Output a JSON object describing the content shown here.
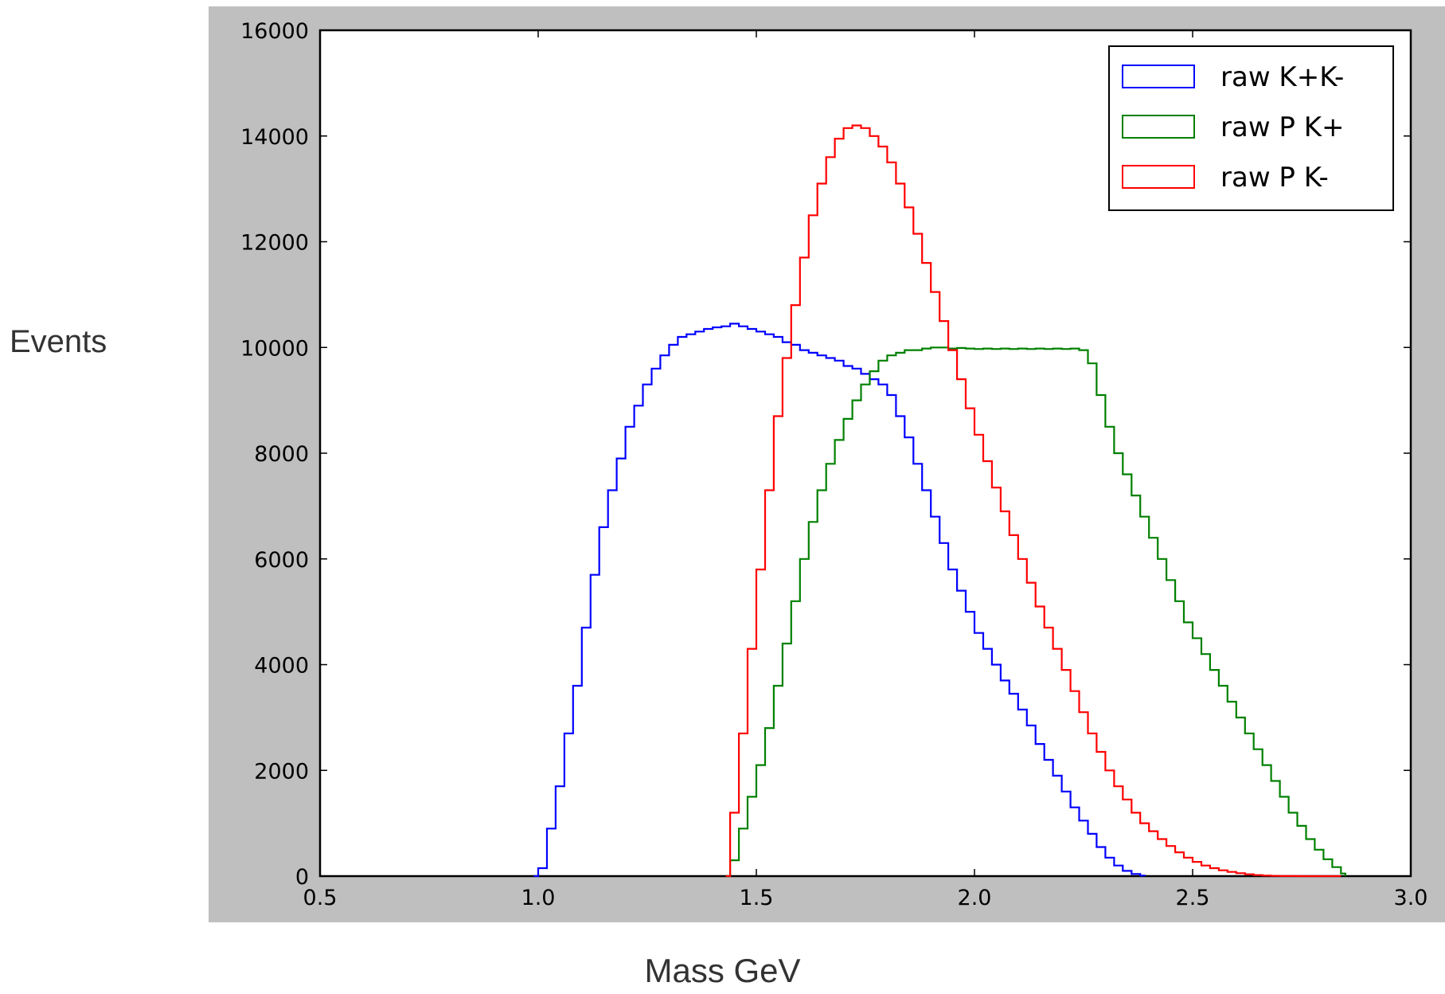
{
  "chart_data": {
    "type": "line",
    "title": "",
    "xlabel": "Mass GeV",
    "ylabel": "Events",
    "xlim": [
      0.5,
      3.0
    ],
    "ylim": [
      0,
      16000
    ],
    "xticks": [
      "0.5",
      "1.0",
      "1.5",
      "2.0",
      "2.5",
      "3.0"
    ],
    "yticks": [
      "0",
      "2000",
      "4000",
      "6000",
      "8000",
      "10000",
      "12000",
      "14000",
      "16000"
    ],
    "grid": false,
    "legend_position": "top-right",
    "step_style": true,
    "series": [
      {
        "name": "raw K+K-",
        "color": "#0000ff",
        "x": [
          0.99,
          1.0,
          1.02,
          1.04,
          1.06,
          1.08,
          1.1,
          1.12,
          1.14,
          1.16,
          1.18,
          1.2,
          1.22,
          1.24,
          1.26,
          1.28,
          1.3,
          1.32,
          1.34,
          1.36,
          1.38,
          1.4,
          1.42,
          1.44,
          1.46,
          1.48,
          1.5,
          1.52,
          1.54,
          1.56,
          1.58,
          1.6,
          1.62,
          1.64,
          1.66,
          1.68,
          1.7,
          1.72,
          1.74,
          1.76,
          1.78,
          1.8,
          1.82,
          1.84,
          1.86,
          1.88,
          1.9,
          1.92,
          1.94,
          1.96,
          1.98,
          2.0,
          2.02,
          2.04,
          2.06,
          2.08,
          2.1,
          2.12,
          2.14,
          2.16,
          2.18,
          2.2,
          2.22,
          2.24,
          2.26,
          2.28,
          2.3,
          2.32,
          2.34,
          2.36,
          2.38,
          2.39
        ],
        "y": [
          0,
          150,
          900,
          1700,
          2700,
          3600,
          4700,
          5700,
          6600,
          7300,
          7900,
          8500,
          8900,
          9300,
          9600,
          9850,
          10050,
          10200,
          10250,
          10300,
          10350,
          10380,
          10400,
          10450,
          10400,
          10350,
          10300,
          10250,
          10200,
          10100,
          10050,
          9950,
          9900,
          9850,
          9800,
          9750,
          9650,
          9600,
          9500,
          9400,
          9300,
          9100,
          8700,
          8300,
          7800,
          7300,
          6800,
          6300,
          5800,
          5400,
          5000,
          4600,
          4300,
          4000,
          3700,
          3450,
          3150,
          2850,
          2500,
          2200,
          1900,
          1600,
          1300,
          1050,
          800,
          550,
          350,
          200,
          100,
          40,
          10,
          0
        ]
      },
      {
        "name": "raw P K+",
        "color": "#008000",
        "x": [
          1.43,
          1.44,
          1.46,
          1.48,
          1.5,
          1.52,
          1.54,
          1.56,
          1.58,
          1.6,
          1.62,
          1.64,
          1.66,
          1.68,
          1.7,
          1.72,
          1.74,
          1.76,
          1.78,
          1.8,
          1.82,
          1.84,
          1.86,
          1.88,
          1.9,
          1.92,
          1.94,
          1.96,
          1.98,
          2.0,
          2.02,
          2.04,
          2.06,
          2.08,
          2.1,
          2.12,
          2.14,
          2.16,
          2.18,
          2.2,
          2.22,
          2.24,
          2.26,
          2.28,
          2.3,
          2.32,
          2.34,
          2.36,
          2.38,
          2.4,
          2.42,
          2.44,
          2.46,
          2.48,
          2.5,
          2.52,
          2.54,
          2.56,
          2.58,
          2.6,
          2.62,
          2.64,
          2.66,
          2.68,
          2.7,
          2.72,
          2.74,
          2.76,
          2.78,
          2.8,
          2.82,
          2.84,
          2.85
        ],
        "y": [
          0,
          300,
          900,
          1500,
          2100,
          2800,
          3600,
          4400,
          5200,
          6000,
          6700,
          7300,
          7800,
          8250,
          8650,
          9000,
          9300,
          9550,
          9750,
          9850,
          9900,
          9950,
          9950,
          9980,
          10000,
          10000,
          9980,
          9990,
          9980,
          9970,
          9980,
          9970,
          9980,
          9970,
          9980,
          9970,
          9980,
          9970,
          9980,
          9970,
          9980,
          9950,
          9700,
          9100,
          8500,
          8000,
          7600,
          7200,
          6800,
          6400,
          6000,
          5600,
          5200,
          4800,
          4500,
          4200,
          3900,
          3600,
          3300,
          3000,
          2700,
          2400,
          2100,
          1800,
          1500,
          1200,
          950,
          700,
          500,
          320,
          170,
          50,
          0
        ]
      },
      {
        "name": "raw P K-",
        "color": "#ff0000",
        "x": [
          1.43,
          1.44,
          1.46,
          1.48,
          1.5,
          1.52,
          1.54,
          1.56,
          1.58,
          1.6,
          1.62,
          1.64,
          1.66,
          1.68,
          1.7,
          1.72,
          1.74,
          1.76,
          1.78,
          1.8,
          1.82,
          1.84,
          1.86,
          1.88,
          1.9,
          1.92,
          1.94,
          1.96,
          1.98,
          2.0,
          2.02,
          2.04,
          2.06,
          2.08,
          2.1,
          2.12,
          2.14,
          2.16,
          2.18,
          2.2,
          2.22,
          2.24,
          2.26,
          2.28,
          2.3,
          2.32,
          2.34,
          2.36,
          2.38,
          2.4,
          2.42,
          2.44,
          2.46,
          2.48,
          2.5,
          2.52,
          2.54,
          2.56,
          2.58,
          2.6,
          2.62,
          2.64,
          2.66,
          2.68,
          2.7,
          2.72,
          2.74,
          2.76,
          2.78,
          2.8,
          2.82,
          2.84
        ],
        "y": [
          0,
          1200,
          2700,
          4300,
          5800,
          7300,
          8700,
          9800,
          10800,
          11700,
          12500,
          13100,
          13600,
          13950,
          14150,
          14200,
          14150,
          14000,
          13800,
          13500,
          13100,
          12650,
          12150,
          11600,
          11050,
          10500,
          9950,
          9400,
          8850,
          8350,
          7850,
          7350,
          6900,
          6450,
          6000,
          5550,
          5100,
          4700,
          4300,
          3900,
          3500,
          3100,
          2700,
          2350,
          2000,
          1700,
          1450,
          1200,
          1000,
          850,
          700,
          570,
          450,
          350,
          270,
          200,
          150,
          110,
          80,
          55,
          35,
          20,
          10,
          5,
          2,
          1,
          0,
          0,
          0,
          0,
          0,
          0
        ]
      }
    ]
  }
}
